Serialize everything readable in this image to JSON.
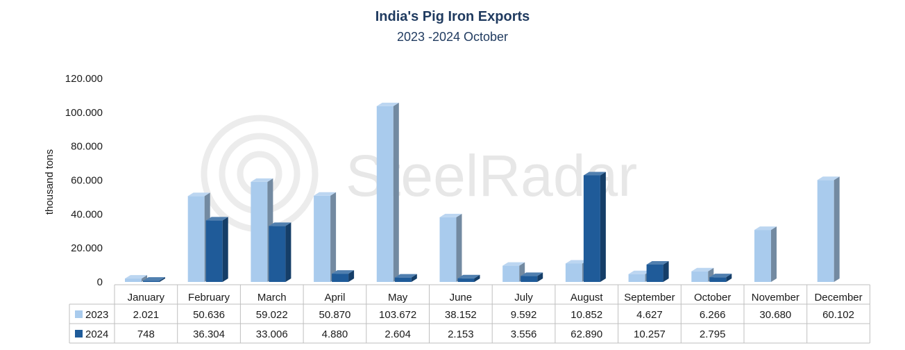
{
  "chart_data": {
    "type": "bar",
    "title": "India's Pig Iron Exports",
    "subtitle": "2023 -2024 October",
    "ylabel": "thousand tons",
    "ylim": [
      0,
      120000
    ],
    "yticks": [
      0,
      20000,
      40000,
      60000,
      80000,
      100000,
      120000
    ],
    "ytick_labels": [
      "0",
      "20.000",
      "40.000",
      "60.000",
      "80.000",
      "100.000",
      "120.000"
    ],
    "categories": [
      "January",
      "February",
      "March",
      "April",
      "May",
      "June",
      "July",
      "August",
      "September",
      "October",
      "November",
      "December"
    ],
    "series": [
      {
        "name": "2023",
        "color": "#a9cbed",
        "values": [
          2021,
          50636,
          59022,
          50870,
          103672,
          38152,
          9592,
          10852,
          4627,
          6266,
          30680,
          60102
        ],
        "labels": [
          "2.021",
          "50.636",
          "59.022",
          "50.870",
          "103.672",
          "38.152",
          "9.592",
          "10.852",
          "4.627",
          "6.266",
          "30.680",
          "60.102"
        ]
      },
      {
        "name": "2024",
        "color": "#1f5b99",
        "values": [
          748,
          36304,
          33006,
          4880,
          2604,
          2153,
          3556,
          62890,
          10257,
          2795,
          null,
          null
        ],
        "labels": [
          "748",
          "36.304",
          "33.006",
          "4.880",
          "2.604",
          "2.153",
          "3.556",
          "62.890",
          "10.257",
          "2.795",
          "",
          ""
        ]
      }
    ],
    "legend": "data-table",
    "grid": false,
    "watermark": "SteelRadar"
  }
}
